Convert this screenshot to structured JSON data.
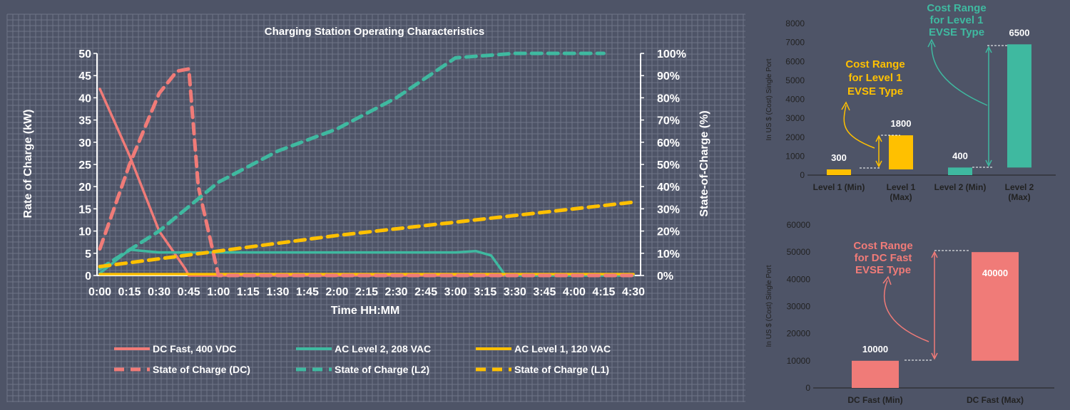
{
  "colors": {
    "background": "#4e5467",
    "grid": "#8a90a3",
    "text": "#ffffff",
    "axis_text": "#222222",
    "dc": "#f07b78",
    "l2": "#3fb9a0",
    "l1": "#ffc000"
  },
  "chart_data": [
    {
      "type": "line",
      "title": "Charging Station Operating Characteristics",
      "xlabel": "Time HH:MM",
      "ylabel": "Rate of Charge (kW)",
      "y2label": "State-of-Charge (%)",
      "categories": [
        "0:00",
        "0:15",
        "0:30",
        "0:45",
        "1:00",
        "1:15",
        "1:30",
        "1:45",
        "2:00",
        "2:15",
        "2:30",
        "2:45",
        "3:00",
        "3:15",
        "3:30",
        "3:45",
        "4:00",
        "4:15",
        "4:30"
      ],
      "ylim": [
        0,
        50
      ],
      "yticks": [
        "0",
        "5",
        "10",
        "15",
        "20",
        "25",
        "30",
        "35",
        "40",
        "45",
        "50"
      ],
      "y2lim": [
        0,
        100
      ],
      "y2ticks": [
        "0%",
        "10%",
        "20%",
        "30%",
        "40%",
        "50%",
        "60%",
        "70%",
        "80%",
        "90%",
        "100%"
      ],
      "grid": true,
      "legend_position": "bottom",
      "series": [
        {
          "name": "DC Fast, 400 VDC",
          "axis": "left",
          "style": "solid",
          "color": "#f07b78",
          "x": [
            0,
            0.25,
            0.5,
            0.72,
            0.75,
            1.0,
            4.5
          ],
          "y": [
            42,
            27,
            10,
            1.5,
            0,
            0,
            0
          ]
        },
        {
          "name": "AC Level 2, 208 VAC",
          "axis": "left",
          "style": "solid",
          "color": "#3fb9a0",
          "x": [
            0,
            0.25,
            0.5,
            1.0,
            2.0,
            3.0,
            3.17,
            3.3,
            3.42,
            4.5
          ],
          "y": [
            0.5,
            5.8,
            5.2,
            5.2,
            5.2,
            5.2,
            5.5,
            4.5,
            0,
            0
          ]
        },
        {
          "name": "AC Level 1, 120 VAC",
          "axis": "left",
          "style": "solid",
          "color": "#ffc000",
          "x": [
            0,
            4.5
          ],
          "y": [
            0.3,
            0.3
          ]
        },
        {
          "name": "State of Charge (DC)",
          "axis": "right",
          "style": "dashed",
          "color": "#f07b78",
          "x": [
            0,
            0.25,
            0.5,
            0.65,
            0.75,
            0.83,
            1.0,
            4.5
          ],
          "y": [
            12,
            50,
            82,
            92,
            93,
            40,
            0,
            0
          ]
        },
        {
          "name": "State of Charge (L2)",
          "axis": "right",
          "style": "dashed",
          "color": "#3fb9a0",
          "x": [
            0,
            0.5,
            1.0,
            1.5,
            2.0,
            2.5,
            3.0,
            3.5,
            4.0,
            4.25
          ],
          "y": [
            3,
            20,
            42,
            56,
            66,
            80,
            98,
            100,
            100,
            100
          ]
        },
        {
          "name": "State of Charge (L1)",
          "axis": "right",
          "style": "dashed",
          "color": "#ffc000",
          "x": [
            0,
            1.0,
            2.0,
            3.0,
            4.0,
            4.5
          ],
          "y": [
            4,
            11,
            18,
            24,
            30,
            33
          ]
        }
      ]
    },
    {
      "type": "bar",
      "ylabel": "In US $ (Cost) Single Port",
      "categories": [
        "Level 1 (Min)",
        "Level 1 (Max)",
        "Level 2 (Min)",
        "Level 2 (Max)"
      ],
      "ylim": [
        0,
        8000
      ],
      "yticks": [
        "0",
        "1000",
        "2000",
        "3000",
        "4000",
        "5000",
        "6000",
        "7000",
        "8000"
      ],
      "bars": [
        {
          "base": 0,
          "value": 300,
          "color": "#ffc000",
          "label": "300"
        },
        {
          "base": 300,
          "value": 1800,
          "color": "#ffc000",
          "label": "1800"
        },
        {
          "base": 0,
          "value": 400,
          "color": "#3fb9a0",
          "label": "400"
        },
        {
          "base": 400,
          "value": 6500,
          "color": "#3fb9a0",
          "label": "6500"
        }
      ],
      "annotations": [
        {
          "lines": [
            "Cost Range",
            "for Level 1",
            "EVSE Type"
          ],
          "color": "#ffc000"
        },
        {
          "lines": [
            "Cost Range",
            "for Level 1",
            "EVSE Type"
          ],
          "color": "#3fb9a0"
        }
      ]
    },
    {
      "type": "bar",
      "ylabel": "In US $ (Cost) Single Port",
      "categories": [
        "DC Fast (Min)",
        "DC Fast (Max)"
      ],
      "ylim": [
        0,
        60000
      ],
      "yticks": [
        "0",
        "10000",
        "20000",
        "30000",
        "40000",
        "50000",
        "60000"
      ],
      "bars": [
        {
          "base": 0,
          "value": 10000,
          "color": "#f07b78",
          "label": "10000"
        },
        {
          "base": 10000,
          "value": 40000,
          "color": "#f07b78",
          "label": "40000"
        }
      ],
      "annotations": [
        {
          "lines": [
            "Cost Range",
            "for DC Fast",
            "EVSE Type"
          ],
          "color": "#f07b78"
        }
      ]
    }
  ]
}
